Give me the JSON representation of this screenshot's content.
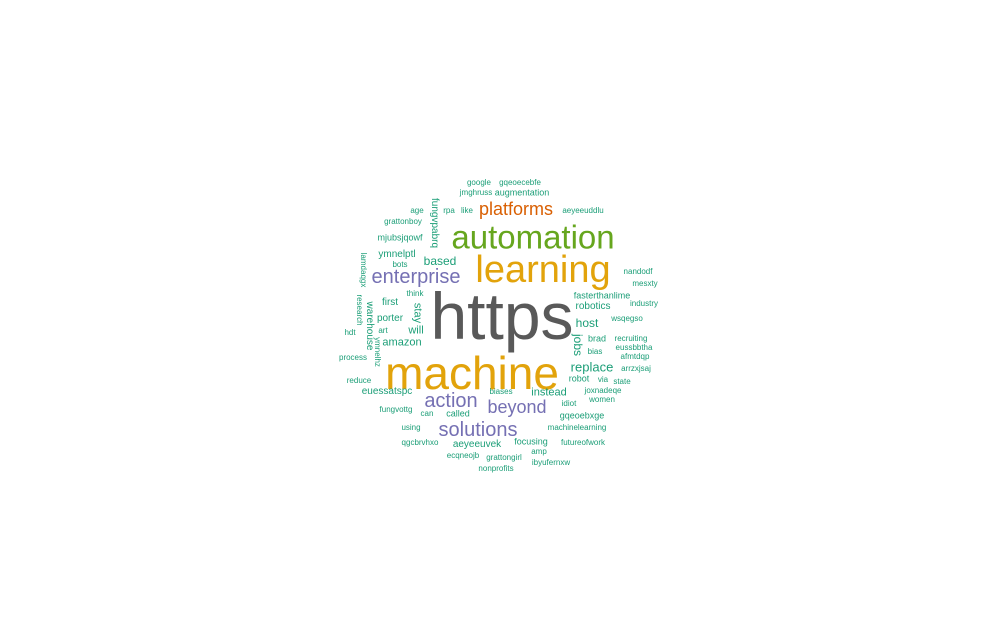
{
  "colors": {
    "gray": "#595959",
    "gold": "#E2A30B",
    "green": "#66A61E",
    "purple": "#7570B3",
    "orange": "#D95F02",
    "teal": "#1B9E77"
  },
  "words": [
    {
      "text": "https",
      "color": "gray"
    },
    {
      "text": "machine",
      "color": "gold"
    },
    {
      "text": "learning",
      "color": "gold"
    },
    {
      "text": "automation",
      "color": "green"
    },
    {
      "text": "platforms",
      "color": "orange"
    },
    {
      "text": "enterprise",
      "color": "purple"
    },
    {
      "text": "beyond",
      "color": "purple"
    },
    {
      "text": "action",
      "color": "purple"
    },
    {
      "text": "solutions",
      "color": "purple"
    },
    {
      "text": "based",
      "color": "teal"
    },
    {
      "text": "replace",
      "color": "teal"
    },
    {
      "text": "host",
      "color": "teal"
    },
    {
      "text": "instead",
      "color": "teal"
    },
    {
      "text": "jobs",
      "color": "teal"
    },
    {
      "text": "amazon",
      "color": "teal"
    },
    {
      "text": "stay",
      "color": "teal"
    },
    {
      "text": "porter",
      "color": "teal"
    },
    {
      "text": "first",
      "color": "teal"
    },
    {
      "text": "will",
      "color": "teal"
    },
    {
      "text": "warehouse",
      "color": "teal"
    },
    {
      "text": "robotics",
      "color": "teal"
    },
    {
      "text": "robot",
      "color": "teal"
    },
    {
      "text": "brad",
      "color": "teal"
    },
    {
      "text": "fungvpabrq",
      "color": "teal"
    },
    {
      "text": "ymnelptl",
      "color": "teal"
    },
    {
      "text": "fasterthanlime",
      "color": "teal"
    },
    {
      "text": "euessatspc",
      "color": "teal"
    },
    {
      "text": "aeyeeuvek",
      "color": "teal"
    },
    {
      "text": "called",
      "color": "teal"
    },
    {
      "text": "focusing",
      "color": "teal"
    },
    {
      "text": "machinelearning",
      "color": "teal"
    },
    {
      "text": "gqeoebxge",
      "color": "teal"
    },
    {
      "text": "joxnadeqe",
      "color": "teal"
    },
    {
      "text": "augmentation",
      "color": "teal"
    },
    {
      "text": "jmghruss",
      "color": "teal"
    },
    {
      "text": "google",
      "color": "teal"
    },
    {
      "text": "gqeoecebfe",
      "color": "teal"
    },
    {
      "text": "age",
      "color": "teal"
    },
    {
      "text": "rpa",
      "color": "teal"
    },
    {
      "text": "like",
      "color": "teal"
    },
    {
      "text": "aeyeeuddlu",
      "color": "teal"
    },
    {
      "text": "grattonboy",
      "color": "teal"
    },
    {
      "text": "mjubsjqowf",
      "color": "teal"
    },
    {
      "text": "lamdaqgx",
      "color": "teal"
    },
    {
      "text": "bots",
      "color": "teal"
    },
    {
      "text": "think",
      "color": "teal"
    },
    {
      "text": "research",
      "color": "teal"
    },
    {
      "text": "art",
      "color": "teal"
    },
    {
      "text": "hdt",
      "color": "teal"
    },
    {
      "text": "ymnelhz",
      "color": "teal"
    },
    {
      "text": "process",
      "color": "teal"
    },
    {
      "text": "reduce",
      "color": "teal"
    },
    {
      "text": "fungvottg",
      "color": "teal"
    },
    {
      "text": "can",
      "color": "teal"
    },
    {
      "text": "using",
      "color": "teal"
    },
    {
      "text": "qgcbrvhxo",
      "color": "teal"
    },
    {
      "text": "ecqneojb",
      "color": "teal"
    },
    {
      "text": "grattongirl",
      "color": "teal"
    },
    {
      "text": "nonprofits",
      "color": "teal"
    },
    {
      "text": "amp",
      "color": "teal"
    },
    {
      "text": "ibyufernxw",
      "color": "teal"
    },
    {
      "text": "futureofwork",
      "color": "teal"
    },
    {
      "text": "women",
      "color": "teal"
    },
    {
      "text": "idiot",
      "color": "teal"
    },
    {
      "text": "via",
      "color": "teal"
    },
    {
      "text": "state",
      "color": "teal"
    },
    {
      "text": "bias",
      "color": "teal"
    },
    {
      "text": "biases",
      "color": "teal"
    },
    {
      "text": "arrzxjsaj",
      "color": "teal"
    },
    {
      "text": "afmtdqp",
      "color": "teal"
    },
    {
      "text": "eussbbtha",
      "color": "teal"
    },
    {
      "text": "recruiting",
      "color": "teal"
    },
    {
      "text": "wsqegso",
      "color": "teal"
    },
    {
      "text": "industry",
      "color": "teal"
    },
    {
      "text": "mesxty",
      "color": "teal"
    },
    {
      "text": "nandodf",
      "color": "teal"
    }
  ]
}
